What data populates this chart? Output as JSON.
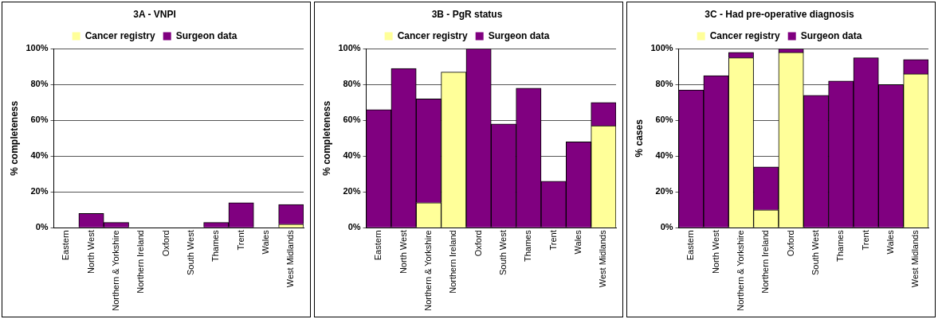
{
  "chart_data": [
    {
      "type": "bar",
      "title": "3A - VNPI",
      "ylabel": "% completeness",
      "stacked": true,
      "legend": "top",
      "grid": "y",
      "categories": [
        "Eastern",
        "North West",
        "Northern & Yorkshire",
        "Northern Ireland",
        "Oxford",
        "South West",
        "Thames",
        "Trent",
        "Wales",
        "West Midlands"
      ],
      "series": [
        {
          "name": "Cancer registry",
          "color": "#ffff99",
          "values": [
            0,
            0,
            0,
            0,
            0,
            0,
            0,
            0,
            0,
            2
          ]
        },
        {
          "name": "Surgeon data",
          "color": "#800080",
          "values": [
            0,
            8,
            3,
            0,
            0,
            0,
            3,
            14,
            0,
            11
          ]
        }
      ],
      "ylim": [
        0,
        100
      ],
      "yticks": [
        {
          "value": 0,
          "label": "0%"
        },
        {
          "value": 20,
          "label": "20%"
        },
        {
          "value": 40,
          "label": "40%"
        },
        {
          "value": 60,
          "label": "60%"
        },
        {
          "value": 80,
          "label": "80%"
        },
        {
          "value": 100,
          "label": "100%"
        }
      ]
    },
    {
      "type": "bar",
      "title": "3B - PgR status",
      "ylabel": "% completeness",
      "stacked": true,
      "legend": "top",
      "grid": "y",
      "categories": [
        "Eastern",
        "North West",
        "Northern & Yorkshire",
        "Northern Ireland",
        "Oxford",
        "South West",
        "Thames",
        "Trent",
        "Wales",
        "West Midlands"
      ],
      "series": [
        {
          "name": "Cancer registry",
          "color": "#ffff99",
          "values": [
            0,
            0,
            14,
            87,
            0,
            0,
            0,
            0,
            0,
            57
          ]
        },
        {
          "name": "Surgeon data",
          "color": "#800080",
          "values": [
            66,
            89,
            58,
            0,
            100,
            58,
            78,
            26,
            48,
            13
          ]
        }
      ],
      "ylim": [
        0,
        100
      ],
      "yticks": [
        {
          "value": 0,
          "label": "0%"
        },
        {
          "value": 20,
          "label": "20%"
        },
        {
          "value": 40,
          "label": "40%"
        },
        {
          "value": 60,
          "label": "60%"
        },
        {
          "value": 80,
          "label": "80%"
        },
        {
          "value": 100,
          "label": "100%"
        }
      ]
    },
    {
      "type": "bar",
      "title": "3C - Had pre-operative diagnosis",
      "ylabel": "% cases",
      "stacked": true,
      "legend": "top",
      "grid": "y",
      "categories": [
        "Eastern",
        "North West",
        "Northern & Yorkshire",
        "Northern Ireland",
        "Oxford",
        "South West",
        "Thames",
        "Trent",
        "Wales",
        "West Midlands"
      ],
      "series": [
        {
          "name": "Cancer registry",
          "color": "#ffff99",
          "values": [
            0,
            0,
            95,
            10,
            98,
            0,
            0,
            0,
            0,
            86
          ]
        },
        {
          "name": "Surgeon data",
          "color": "#800080",
          "values": [
            77,
            85,
            3,
            24,
            2,
            74,
            82,
            95,
            80,
            8
          ]
        }
      ],
      "ylim": [
        0,
        100
      ],
      "yticks": [
        {
          "value": 0,
          "label": "0%"
        },
        {
          "value": 20,
          "label": "20%"
        },
        {
          "value": 40,
          "label": "40%"
        },
        {
          "value": 60,
          "label": "60%"
        },
        {
          "value": 80,
          "label": "80%"
        },
        {
          "value": 100,
          "label": "100%"
        }
      ]
    }
  ]
}
